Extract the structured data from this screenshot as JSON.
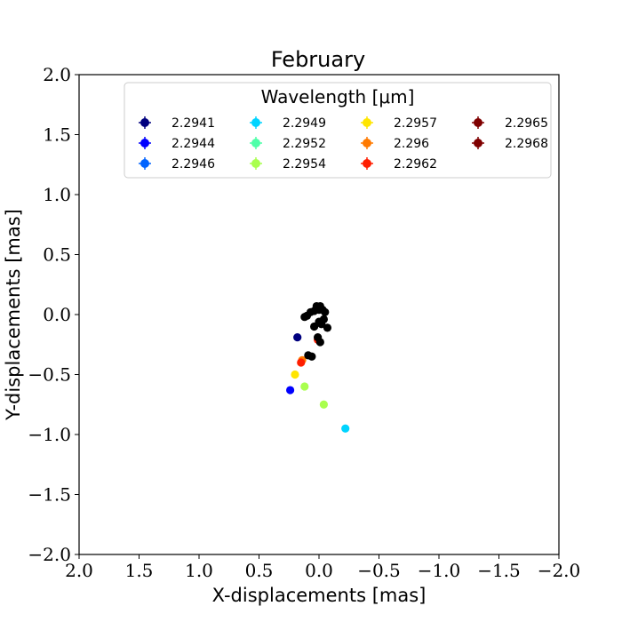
{
  "chart_data": {
    "type": "scatter",
    "title": "February",
    "xlabel": "X-displacements [mas]",
    "ylabel": "Y-displacements [mas]",
    "xlim": [
      2.0,
      -2.0
    ],
    "ylim": [
      -2.0,
      2.0
    ],
    "x_inverted": true,
    "xticks": [
      2.0,
      1.5,
      1.0,
      0.5,
      0.0,
      -0.5,
      -1.0,
      -1.5,
      -2.0
    ],
    "yticks": [
      -2.0,
      -1.5,
      -1.0,
      -0.5,
      0.0,
      0.5,
      1.0,
      1.5,
      2.0
    ],
    "xtick_labels": [
      "2.0",
      "1.5",
      "1.0",
      "0.5",
      "0.0",
      "−0.5",
      "−1.0",
      "−1.5",
      "−2.0"
    ],
    "ytick_labels": [
      "−2.0",
      "−1.5",
      "−1.0",
      "−0.5",
      "0.0",
      "0.5",
      "1.0",
      "1.5",
      "2.0"
    ],
    "grid": false,
    "legend": {
      "title": "Wavelength [μm]",
      "placement": "top-center",
      "ncol": 4
    },
    "series": [
      {
        "name": "2.2941",
        "color": "#00007f",
        "points": [
          [
            0.18,
            -0.19
          ]
        ]
      },
      {
        "name": "2.2944",
        "color": "#0000ff",
        "points": [
          [
            0.24,
            -0.63
          ]
        ]
      },
      {
        "name": "2.2946",
        "color": "#0063ff",
        "points": []
      },
      {
        "name": "2.2949",
        "color": "#00d4ff",
        "points": [
          [
            -0.22,
            -0.95
          ]
        ]
      },
      {
        "name": "2.2952",
        "color": "#4effa9",
        "points": []
      },
      {
        "name": "2.2954",
        "color": "#a9ff4e",
        "points": [
          [
            0.12,
            -0.6
          ],
          [
            -0.04,
            -0.75
          ]
        ]
      },
      {
        "name": "2.2957",
        "color": "#ffe500",
        "points": [
          [
            0.2,
            -0.5
          ]
        ]
      },
      {
        "name": "2.296",
        "color": "#ff7a00",
        "points": [
          [
            0.14,
            -0.38
          ]
        ]
      },
      {
        "name": "2.2962",
        "color": "#ff1e00",
        "points": [
          [
            0.15,
            -0.4
          ],
          [
            0.01,
            -0.21
          ]
        ]
      },
      {
        "name": "2.2965",
        "color": "#7f0000",
        "points": []
      },
      {
        "name": "2.2968",
        "color": "#7f0000",
        "points": []
      },
      {
        "name": "",
        "color": "#000000",
        "points": [
          [
            0.02,
            0.07
          ],
          [
            -0.01,
            0.07
          ],
          [
            0.04,
            0.03
          ],
          [
            0.0,
            0.04
          ],
          [
            -0.03,
            0.04
          ],
          [
            -0.05,
            0.02
          ],
          [
            0.1,
            -0.01
          ],
          [
            0.12,
            -0.02
          ],
          [
            0.07,
            0.02
          ],
          [
            -0.04,
            -0.04
          ],
          [
            -0.02,
            -0.08
          ],
          [
            -0.07,
            -0.11
          ],
          [
            0.04,
            -0.1
          ],
          [
            0.0,
            -0.06
          ],
          [
            0.01,
            -0.19
          ],
          [
            -0.01,
            -0.23
          ],
          [
            0.09,
            -0.34
          ],
          [
            0.06,
            -0.35
          ]
        ]
      }
    ]
  }
}
